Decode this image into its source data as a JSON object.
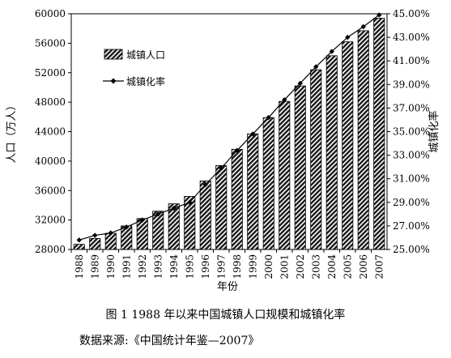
{
  "chart_data": {
    "type": "bar",
    "categories": [
      "1988",
      "1989",
      "1990",
      "1991",
      "1992",
      "1993",
      "1994",
      "1995",
      "1996",
      "1997",
      "1998",
      "1999",
      "2000",
      "2001",
      "2002",
      "2003",
      "2004",
      "2005",
      "2006",
      "2007"
    ],
    "series": [
      {
        "name": "城镇人口",
        "kind": "bar",
        "axis": "left",
        "values": [
          28700,
          29500,
          30200,
          31200,
          32200,
          33200,
          34200,
          35200,
          37300,
          39400,
          41600,
          43700,
          45900,
          48100,
          50200,
          52400,
          54300,
          56200,
          57700,
          59400
        ]
      },
      {
        "name": "城镇化率",
        "kind": "line",
        "axis": "right",
        "values": [
          25.8,
          26.2,
          26.4,
          26.9,
          27.5,
          28.0,
          28.5,
          29.0,
          30.5,
          31.9,
          33.4,
          34.8,
          36.2,
          37.7,
          39.1,
          40.5,
          41.8,
          43.0,
          43.9,
          44.9
        ]
      }
    ],
    "y_left": {
      "label": "人口（万人）",
      "min": 28000,
      "max": 60000,
      "ticks": [
        "28000",
        "32000",
        "36000",
        "40000",
        "44000",
        "48000",
        "52000",
        "56000",
        "60000"
      ]
    },
    "y_right": {
      "label": "城镇化率",
      "min": 25,
      "max": 45,
      "ticks": [
        "25.00%",
        "27.00%",
        "29.00%",
        "31.00%",
        "33.00%",
        "35.00%",
        "37.00%",
        "39.00%",
        "41.00%",
        "43.00%",
        "45.00%"
      ]
    },
    "xlabel": "年份",
    "legend": [
      {
        "name": "城镇人口",
        "marker": "hatched-bar"
      },
      {
        "name": "城镇化率",
        "marker": "line-diamond"
      }
    ],
    "legend_position": "top-left",
    "grid": false
  },
  "figure": {
    "caption": "图 1  1988 年以来中国城镇人口规模和城镇化率",
    "source": "数据来源:《中国统计年鉴—2007》"
  }
}
